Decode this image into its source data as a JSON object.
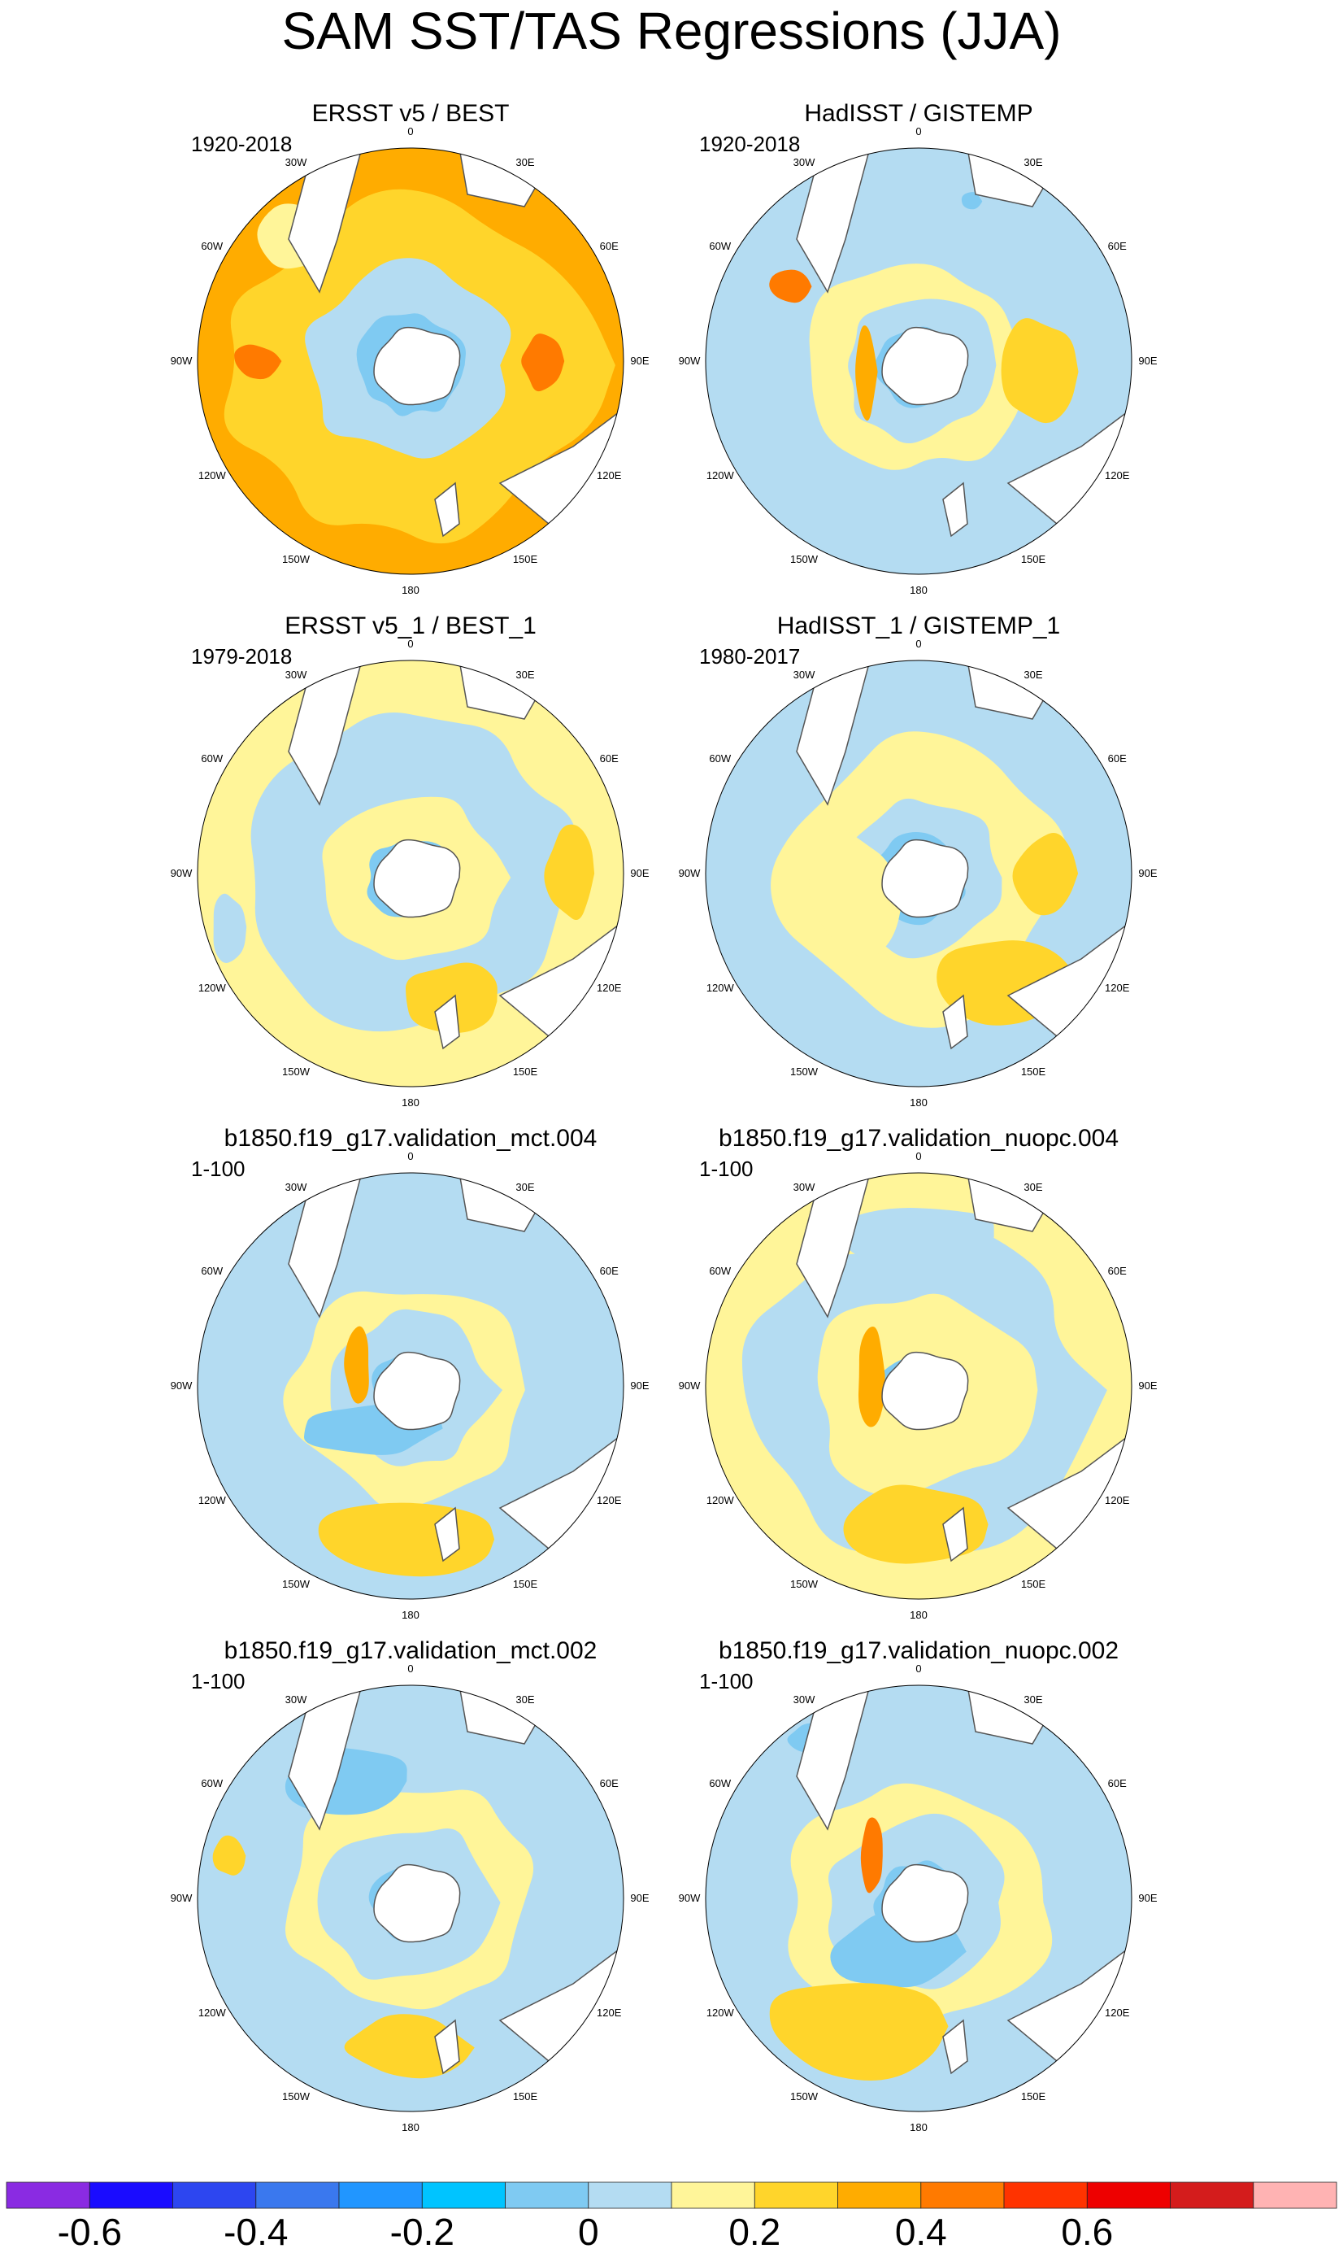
{
  "figure": {
    "title": "SAM SST/TAS Regressions (JJA)"
  },
  "panels": [
    {
      "title": "ERSST v5 / BEST",
      "period": "1920-2018"
    },
    {
      "title": "HadISST / GISTEMP",
      "period": "1920-2018"
    },
    {
      "title": "ERSST v5_1 / BEST_1",
      "period": "1979-2018"
    },
    {
      "title": "HadISST_1 / GISTEMP_1",
      "period": "1980-2017"
    },
    {
      "title": "b1850.f19_g17.validation_mct.004",
      "period": "1-100"
    },
    {
      "title": "b1850.f19_g17.validation_nuopc.004",
      "period": "1-100"
    },
    {
      "title": "b1850.f19_g17.validation_mct.002",
      "period": "1-100"
    },
    {
      "title": "b1850.f19_g17.validation_nuopc.002",
      "period": "1-100"
    }
  ],
  "longitude_labels": [
    "0",
    "30E",
    "60E",
    "90E",
    "120E",
    "150E",
    "180",
    "150W",
    "120W",
    "90W",
    "60W",
    "30W"
  ],
  "colorbar": {
    "colors": [
      "#8a2be2",
      "#1a0cff",
      "#2d46f0",
      "#3a78ee",
      "#2196ff",
      "#00c4ff",
      "#7fcaf2",
      "#b4dcf2",
      "#fff599",
      "#ffd52b",
      "#ffac00",
      "#ff7a00",
      "#ff3300",
      "#ee0000",
      "#d41c1c",
      "#ffb3b3"
    ],
    "labels": [
      "-0.6",
      "-0.4",
      "-0.2",
      "0",
      "0.2",
      "0.4",
      "0.6"
    ]
  },
  "palette": {
    "ocean_neg_light": "#b4dcf2",
    "ocean_neg_mid": "#7fcaf2",
    "ocean_pos_light": "#fff599",
    "ocean_pos_mid": "#ffd52b",
    "ocean_pos_strong": "#ffac00",
    "ocean_pos_deep": "#ff7a00",
    "land": "#ffffff",
    "coast": "#555555"
  }
}
